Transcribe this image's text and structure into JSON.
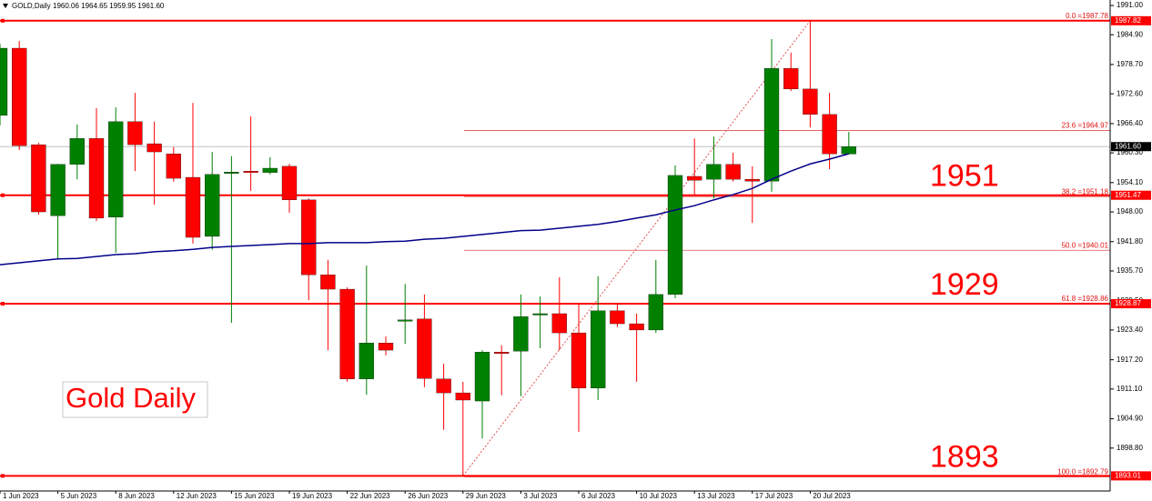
{
  "chart_data": {
    "type": "candlestick",
    "title": "GOLD,Daily",
    "ohlc_label": "1960.06 1964.65 1959.95 1961.60",
    "annotation": "Gold Daily",
    "categories": [
      "1 Jun 2023",
      null,
      null,
      "5 Jun 2023",
      null,
      null,
      "8 Jun 2023",
      null,
      null,
      "12 Jun 2023",
      null,
      null,
      "15 Jun 2023",
      null,
      null,
      "19 Jun 2023",
      null,
      null,
      "22 Jun 2023",
      null,
      null,
      "26 Jun 2023",
      null,
      null,
      "29 Jun 2023",
      null,
      null,
      "3 Jul 2023",
      null,
      null,
      "6 Jul 2023",
      null,
      null,
      "10 Jul 2023",
      null,
      null,
      "13 Jul 2023",
      null,
      null,
      "17 Jul 2023",
      null,
      null,
      "20 Jul 2023",
      null,
      null
    ],
    "open": [
      1968.1,
      1982.1,
      1962.0,
      1947.2,
      1957.9,
      1963.3,
      1946.9,
      1966.8,
      1962.2,
      1960.1,
      1955.2,
      1942.9,
      1956.0,
      1956.5,
      1956.2,
      1957.5,
      1950.5,
      1934.9,
      1931.9,
      1913.2,
      1920.7,
      1925.3,
      1925.7,
      1913.2,
      1910.3,
      1908.6,
      1918.8,
      1919.0,
      1926.6,
      1926.8,
      1922.8,
      1911.3,
      1927.4,
      1924.7,
      1923.4,
      1930.8,
      1955.4,
      1954.8,
      1957.9,
      1954.8,
      1954.4,
      1977.9,
      1973.6,
      1968.3,
      1960.06
    ],
    "high": [
      1983.0,
      1983.6,
      1962.4,
      1958.0,
      1966.2,
      1969.6,
      1969.8,
      1972.8,
      1966.8,
      1961.5,
      1970.7,
      1960.5,
      1959.6,
      1967.9,
      1959.4,
      1958.0,
      1950.8,
      1938.0,
      1932.3,
      1936.8,
      1922.1,
      1933.0,
      1930.8,
      1916.4,
      1912.6,
      1919.2,
      1920.2,
      1930.8,
      1930.4,
      1934.4,
      1928.7,
      1934.6,
      1928.7,
      1926.8,
      1938.0,
      1957.7,
      1963.3,
      1963.7,
      1960.3,
      1957.5,
      1984.0,
      1981.2,
      1987.82,
      1972.8,
      1964.65
    ],
    "low": [
      1966.0,
      1960.9,
      1947.4,
      1938.2,
      1954.8,
      1946.1,
      1939.5,
      1956.5,
      1949.5,
      1954.3,
      1941.4,
      1940.1,
      1924.9,
      1952.4,
      1955.8,
      1947.8,
      1929.6,
      1919.2,
      1912.6,
      1909.9,
      1918.1,
      1920.5,
      1911.5,
      1902.6,
      1893.01,
      1900.8,
      1909.8,
      1909.6,
      1919.6,
      1919.2,
      1902.2,
      1908.8,
      1924.0,
      1912.6,
      1922.8,
      1930.0,
      1951.4,
      1950.8,
      1954.3,
      1945.7,
      1952.2,
      1973.2,
      1965.6,
      1956.9,
      1959.95
    ],
    "close": [
      1982.1,
      1961.8,
      1948.0,
      1957.9,
      1963.3,
      1946.7,
      1966.8,
      1962.0,
      1960.5,
      1955.0,
      1942.7,
      1955.8,
      1956.3,
      1956.2,
      1957.1,
      1950.5,
      1934.9,
      1931.9,
      1913.2,
      1920.7,
      1919.2,
      1925.5,
      1913.3,
      1910.3,
      1908.8,
      1918.8,
      1918.5,
      1926.2,
      1926.8,
      1922.8,
      1911.3,
      1927.4,
      1924.7,
      1923.4,
      1930.8,
      1955.6,
      1954.6,
      1957.9,
      1954.8,
      1954.4,
      1977.9,
      1973.6,
      1968.3,
      1960.1,
      1961.6
    ],
    "colors": {
      "up": "#008000",
      "down": "#ff0000",
      "level": "#ff0000",
      "fib": "#e05050"
    },
    "ma": {
      "color": "#00008b",
      "values": [
        1937.0,
        1937.4,
        1937.8,
        1938.2,
        1938.3,
        1938.7,
        1939.1,
        1939.3,
        1939.7,
        1939.9,
        1940.2,
        1940.6,
        1940.8,
        1941.0,
        1941.2,
        1941.4,
        1941.4,
        1941.6,
        1941.6,
        1941.6,
        1941.8,
        1941.9,
        1942.3,
        1942.5,
        1942.9,
        1943.3,
        1943.7,
        1944.1,
        1944.2,
        1944.6,
        1945.0,
        1945.4,
        1946.0,
        1946.7,
        1947.4,
        1948.4,
        1949.3,
        1950.5,
        1951.6,
        1952.9,
        1954.8,
        1956.5,
        1958.0,
        1959.0,
        1960.1
      ]
    },
    "ylim": [
      1889.86,
      1992.14
    ],
    "yticks": [
      {
        "value": 1991.0,
        "label": "1991.00"
      },
      {
        "value": 1984.9,
        "label": "1984.90"
      },
      {
        "value": 1978.7,
        "label": "1978.70"
      },
      {
        "value": 1972.6,
        "label": "1972.60"
      },
      {
        "value": 1966.4,
        "label": "1966.40"
      },
      {
        "value": 1960.3,
        "label": "1960.30"
      },
      {
        "value": 1954.1,
        "label": "1954.10"
      },
      {
        "value": 1948.0,
        "label": "1948.00"
      },
      {
        "value": 1941.8,
        "label": "1941.80"
      },
      {
        "value": 1935.7,
        "label": "1935.70"
      },
      {
        "value": 1929.5,
        "label": "1929.50"
      },
      {
        "value": 1923.4,
        "label": "1923.40"
      },
      {
        "value": 1917.2,
        "label": "1917.20"
      },
      {
        "value": 1911.1,
        "label": "1911.10"
      },
      {
        "value": 1904.9,
        "label": "1904.90"
      },
      {
        "value": 1898.8,
        "label": "1898.80"
      }
    ],
    "levels": [
      {
        "value": 1987.82
      },
      {
        "value": 1951.47,
        "label": "1951"
      },
      {
        "value": 1928.87,
        "label": "1929"
      },
      {
        "value": 1893.01,
        "label": "1893"
      }
    ],
    "current_price": {
      "value": 1961.6,
      "label": "1961.60"
    },
    "fib_levels": [
      {
        "value": 1987.78,
        "label": "0.0 =1987.78"
      },
      {
        "value": 1964.97,
        "label": "23.6 =1964.97"
      },
      {
        "value": 1951.18,
        "label": "38.2 =1951.18"
      },
      {
        "value": 1940.01,
        "label": "50.0 =1940.01"
      },
      {
        "value": 1928.86,
        "label": "61.8 =1928.86"
      },
      {
        "value": 1892.79,
        "label": "100.0 =1892.79"
      }
    ]
  }
}
